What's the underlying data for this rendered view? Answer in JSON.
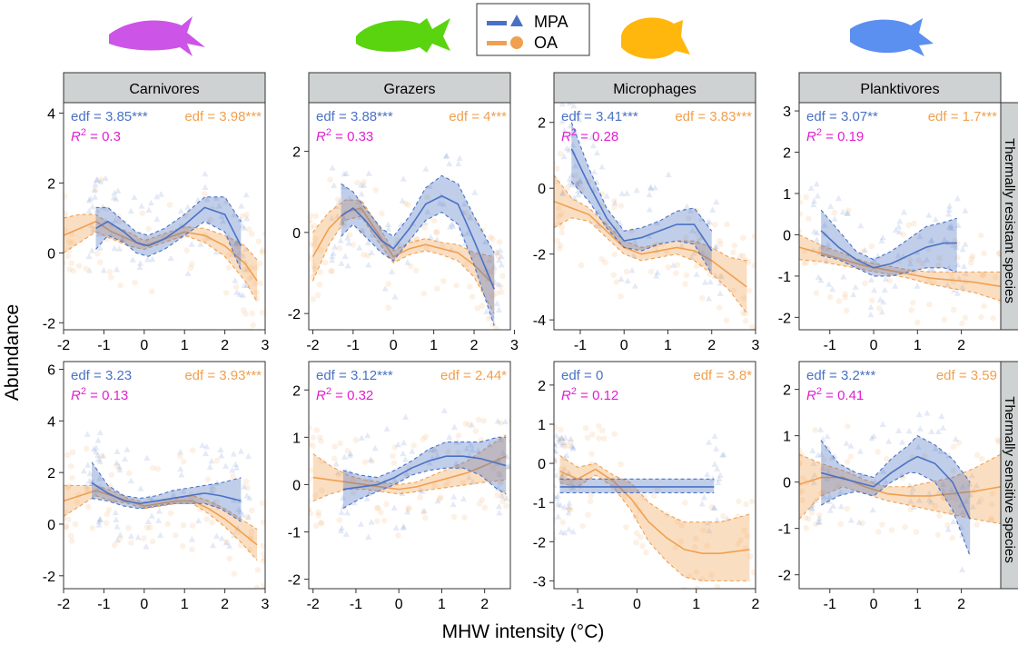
{
  "colors": {
    "mpa": "#4a72c4",
    "oa": "#f0a050",
    "r2": "#e020d0",
    "strip_fill": "#cfd2d2",
    "fish": [
      "#cc55e8",
      "#5ad40e",
      "#ffb70e",
      "#5b8ff0"
    ]
  },
  "legend": {
    "mpa_label": "MPA",
    "oa_label": "OA"
  },
  "axis": {
    "ylabel": "Abundance",
    "xlabel": "MHW intensity (°C)"
  },
  "columns": [
    "Carnivores",
    "Grazers",
    "Microphages",
    "Planktivores"
  ],
  "rows": [
    "Thermally resistant species",
    "Thermally sensitive species"
  ],
  "chart_data": [
    {
      "type": "line",
      "panel": "Carnivores - Thermally resistant species",
      "xlim": [
        -2,
        3
      ],
      "ylim": [
        -2.2,
        4.3
      ],
      "xticks": [
        -2,
        -1,
        0,
        1,
        2,
        3
      ],
      "yticks": [
        -2,
        0,
        2,
        4
      ],
      "series": [
        {
          "name": "MPA",
          "x": [
            -1.2,
            -0.9,
            -0.5,
            -0.2,
            0.1,
            0.5,
            1.0,
            1.5,
            2.0,
            2.4
          ],
          "y": [
            0.7,
            0.9,
            0.6,
            0.3,
            0.2,
            0.4,
            0.8,
            1.3,
            1.1,
            0.2
          ],
          "lower": [
            0.1,
            0.5,
            0.3,
            0.0,
            -0.1,
            0.1,
            0.5,
            0.9,
            0.6,
            -0.5
          ],
          "upper": [
            1.3,
            1.3,
            0.9,
            0.6,
            0.5,
            0.7,
            1.1,
            1.6,
            1.6,
            0.9
          ]
        },
        {
          "name": "OA",
          "x": [
            -2.0,
            -1.6,
            -1.2,
            -0.8,
            -0.4,
            0.0,
            0.5,
            1.0,
            1.5,
            2.0,
            2.5,
            2.8
          ],
          "y": [
            0.5,
            0.7,
            0.9,
            0.6,
            0.4,
            0.2,
            0.4,
            0.6,
            0.5,
            0.2,
            -0.3,
            -0.8
          ],
          "lower": [
            0.0,
            0.3,
            0.6,
            0.4,
            0.2,
            0.1,
            0.3,
            0.5,
            0.3,
            -0.1,
            -0.8,
            -1.4
          ],
          "upper": [
            1.0,
            1.1,
            1.1,
            0.8,
            0.6,
            0.35,
            0.55,
            0.75,
            0.7,
            0.5,
            0.2,
            -0.2
          ]
        }
      ],
      "annotations": {
        "mpa": "edf = 3.85***",
        "oa": "edf = 3.98***",
        "r2": "0.3"
      }
    },
    {
      "type": "line",
      "panel": "Grazers - Thermally resistant species",
      "xlim": [
        -2.1,
        2.9
      ],
      "ylim": [
        -2.4,
        3.2
      ],
      "xticks": [
        -2,
        -1,
        0,
        1,
        2,
        3
      ],
      "yticks": [
        -2,
        0,
        2
      ],
      "series": [
        {
          "name": "MPA",
          "x": [
            -1.3,
            -1.0,
            -0.7,
            -0.3,
            0.0,
            0.4,
            0.8,
            1.2,
            1.6,
            2.0,
            2.5
          ],
          "y": [
            0.4,
            0.6,
            0.3,
            -0.2,
            -0.4,
            0.1,
            0.7,
            0.9,
            0.7,
            -0.2,
            -1.4
          ],
          "lower": [
            -0.1,
            0.2,
            -0.1,
            -0.5,
            -0.7,
            -0.2,
            0.3,
            0.5,
            0.2,
            -0.8,
            -2.3
          ],
          "upper": [
            1.2,
            1.0,
            0.6,
            0.1,
            -0.1,
            0.4,
            1.1,
            1.4,
            1.2,
            0.4,
            -0.5
          ]
        },
        {
          "name": "OA",
          "x": [
            -2.0,
            -1.6,
            -1.2,
            -0.8,
            -0.4,
            0.0,
            0.4,
            0.8,
            1.2,
            1.6,
            2.0,
            2.5
          ],
          "y": [
            -0.6,
            0.1,
            0.5,
            0.6,
            0.0,
            -0.6,
            -0.4,
            -0.3,
            -0.4,
            -0.5,
            -0.8,
            -1.3
          ],
          "lower": [
            -1.2,
            -0.3,
            0.3,
            0.4,
            -0.2,
            -0.75,
            -0.55,
            -0.45,
            -0.55,
            -0.7,
            -1.1,
            -2.0
          ],
          "upper": [
            0.0,
            0.5,
            0.8,
            0.8,
            0.2,
            -0.45,
            -0.25,
            -0.15,
            -0.25,
            -0.3,
            -0.5,
            -0.6
          ]
        }
      ],
      "annotations": {
        "mpa": "edf = 3.88***",
        "oa": "edf = 4***",
        "r2": "0.33"
      }
    },
    {
      "type": "line",
      "panel": "Microphages - Thermally resistant species",
      "xlim": [
        -1.6,
        3.0
      ],
      "ylim": [
        -4.3,
        2.6
      ],
      "xticks": [
        -1,
        0,
        1,
        2,
        3
      ],
      "yticks": [
        -4,
        -2,
        0,
        2
      ],
      "series": [
        {
          "name": "MPA",
          "x": [
            -1.2,
            -0.8,
            -0.4,
            0.0,
            0.4,
            0.8,
            1.2,
            1.6,
            2.0
          ],
          "y": [
            1.2,
            0.1,
            -0.9,
            -1.6,
            -1.5,
            -1.3,
            -1.1,
            -1.1,
            -1.9
          ],
          "lower": [
            0.2,
            -0.4,
            -1.2,
            -1.8,
            -1.9,
            -1.7,
            -1.6,
            -1.7,
            -2.6
          ],
          "upper": [
            2.0,
            0.6,
            -0.6,
            -1.3,
            -1.2,
            -1.0,
            -0.7,
            -0.6,
            -1.3
          ]
        },
        {
          "name": "OA",
          "x": [
            -1.6,
            -1.2,
            -0.8,
            -0.4,
            0.0,
            0.4,
            0.8,
            1.2,
            1.6,
            2.0,
            2.4,
            2.8
          ],
          "y": [
            -0.4,
            -0.6,
            -0.8,
            -1.3,
            -1.8,
            -2.0,
            -1.9,
            -1.8,
            -1.9,
            -2.2,
            -2.6,
            -3.0
          ],
          "lower": [
            -1.2,
            -0.9,
            -1.0,
            -1.5,
            -2.0,
            -2.2,
            -2.1,
            -2.0,
            -2.2,
            -2.6,
            -3.1,
            -3.8
          ],
          "upper": [
            0.4,
            -0.3,
            -0.6,
            -1.1,
            -1.6,
            -1.8,
            -1.7,
            -1.6,
            -1.6,
            -1.8,
            -2.1,
            -2.2
          ]
        }
      ],
      "annotations": {
        "mpa": "edf = 3.41***",
        "oa": "edf = 3.83***",
        "r2": "0.28"
      }
    },
    {
      "type": "line",
      "panel": "Planktivores - Thermally resistant species",
      "xlim": [
        -1.7,
        2.9
      ],
      "ylim": [
        -2.3,
        3.2
      ],
      "xticks": [
        -1,
        0,
        1,
        2
      ],
      "yticks": [
        -2,
        -1,
        0,
        1,
        2,
        3
      ],
      "series": [
        {
          "name": "MPA",
          "x": [
            -1.2,
            -0.8,
            -0.4,
            0.0,
            0.4,
            0.8,
            1.2,
            1.6,
            1.9
          ],
          "y": [
            0.1,
            -0.3,
            -0.6,
            -0.8,
            -0.7,
            -0.5,
            -0.3,
            -0.2,
            -0.2
          ],
          "lower": [
            -0.5,
            -0.6,
            -0.8,
            -1.0,
            -1.0,
            -0.9,
            -0.8,
            -0.8,
            -0.9
          ],
          "upper": [
            0.6,
            0.1,
            -0.4,
            -0.6,
            -0.4,
            -0.1,
            0.2,
            0.3,
            0.4
          ]
        },
        {
          "name": "OA",
          "x": [
            -1.7,
            -1.2,
            -0.7,
            -0.2,
            0.3,
            0.8,
            1.3,
            1.8,
            2.3,
            2.9
          ],
          "y": [
            -0.3,
            -0.45,
            -0.6,
            -0.75,
            -0.85,
            -0.95,
            -1.05,
            -1.1,
            -1.15,
            -1.25
          ],
          "lower": [
            -0.6,
            -0.65,
            -0.75,
            -0.85,
            -0.95,
            -1.05,
            -1.2,
            -1.3,
            -1.4,
            -1.6
          ],
          "upper": [
            0.0,
            -0.25,
            -0.45,
            -0.65,
            -0.75,
            -0.85,
            -0.9,
            -0.9,
            -0.9,
            -0.9
          ]
        }
      ],
      "annotations": {
        "mpa": "edf = 3.07**",
        "oa": "edf = 1.7***",
        "r2": "0.19"
      }
    },
    {
      "type": "line",
      "panel": "Carnivores - Thermally sensitive species",
      "xlim": [
        -2,
        3
      ],
      "ylim": [
        -2.5,
        6.3
      ],
      "xticks": [
        -2,
        -1,
        0,
        1,
        2,
        3
      ],
      "yticks": [
        -2,
        0,
        2,
        4,
        6
      ],
      "series": [
        {
          "name": "MPA",
          "x": [
            -1.3,
            -0.9,
            -0.5,
            -0.1,
            0.3,
            0.7,
            1.1,
            1.5,
            1.9,
            2.4
          ],
          "y": [
            1.6,
            1.2,
            0.9,
            0.8,
            0.9,
            1.0,
            1.1,
            1.2,
            1.1,
            0.9
          ],
          "lower": [
            1.0,
            0.9,
            0.7,
            0.6,
            0.7,
            0.8,
            0.8,
            0.8,
            0.6,
            0.1
          ],
          "upper": [
            2.4,
            1.5,
            1.1,
            1.0,
            1.1,
            1.3,
            1.4,
            1.5,
            1.6,
            1.8
          ]
        },
        {
          "name": "OA",
          "x": [
            -2.0,
            -1.6,
            -1.2,
            -0.8,
            -0.4,
            0.0,
            0.4,
            0.8,
            1.2,
            1.6,
            2.0,
            2.4,
            2.8
          ],
          "y": [
            0.9,
            1.1,
            1.3,
            1.1,
            0.9,
            0.7,
            0.8,
            0.9,
            0.9,
            0.6,
            0.2,
            -0.3,
            -0.8
          ],
          "lower": [
            0.3,
            0.7,
            1.1,
            0.9,
            0.8,
            0.6,
            0.7,
            0.8,
            0.8,
            0.4,
            -0.1,
            -0.7,
            -1.4
          ],
          "upper": [
            1.5,
            1.5,
            1.5,
            1.3,
            1.0,
            0.85,
            0.9,
            1.0,
            1.1,
            0.9,
            0.6,
            0.2,
            -0.2
          ]
        }
      ],
      "annotations": {
        "mpa": "edf = 3.23",
        "oa": "edf = 3.93***",
        "r2": "0.13"
      }
    },
    {
      "type": "line",
      "panel": "Grazers - Thermally sensitive species",
      "xlim": [
        -2.1,
        2.6
      ],
      "ylim": [
        -2.2,
        2.6
      ],
      "xticks": [
        -2,
        -1,
        0,
        1,
        2
      ],
      "yticks": [
        -2,
        -1,
        0,
        1,
        2
      ],
      "series": [
        {
          "name": "MPA",
          "x": [
            -1.3,
            -0.9,
            -0.5,
            -0.1,
            0.3,
            0.7,
            1.1,
            1.5,
            1.9,
            2.3,
            2.5
          ],
          "y": [
            -0.1,
            -0.05,
            0.0,
            0.15,
            0.35,
            0.5,
            0.6,
            0.6,
            0.55,
            0.45,
            0.4
          ],
          "lower": [
            -0.5,
            -0.3,
            -0.15,
            0.0,
            0.2,
            0.3,
            0.35,
            0.35,
            0.2,
            -0.1,
            -0.2
          ],
          "upper": [
            0.3,
            0.2,
            0.15,
            0.3,
            0.5,
            0.75,
            0.9,
            0.9,
            0.9,
            1.0,
            1.0
          ]
        },
        {
          "name": "OA",
          "x": [
            -2.0,
            -1.6,
            -1.2,
            -0.8,
            -0.4,
            0.0,
            0.4,
            0.8,
            1.2,
            1.6,
            2.0,
            2.5
          ],
          "y": [
            0.15,
            0.1,
            0.05,
            0.0,
            -0.05,
            -0.1,
            -0.05,
            0.05,
            0.15,
            0.25,
            0.4,
            0.6
          ],
          "lower": [
            -0.35,
            -0.2,
            -0.1,
            -0.1,
            -0.15,
            -0.2,
            -0.15,
            -0.1,
            -0.05,
            0.0,
            0.05,
            0.1
          ],
          "upper": [
            0.65,
            0.4,
            0.2,
            0.1,
            0.05,
            0.0,
            0.05,
            0.2,
            0.35,
            0.5,
            0.75,
            1.05
          ]
        }
      ],
      "annotations": {
        "mpa": "edf = 3.12***",
        "oa": "edf = 2.44*",
        "r2": "0.32"
      }
    },
    {
      "type": "line",
      "panel": "Microphages - Thermally sensitive species",
      "xlim": [
        -1.4,
        2.0
      ],
      "ylim": [
        -3.2,
        2.6
      ],
      "xticks": [
        -1,
        0,
        1,
        2
      ],
      "yticks": [
        -3,
        -2,
        -1,
        0,
        1,
        2
      ],
      "series": [
        {
          "name": "MPA",
          "x": [
            -1.3,
            1.3
          ],
          "y": [
            -0.6,
            -0.6
          ],
          "lower": [
            -0.75,
            -0.75
          ],
          "upper": [
            -0.4,
            -0.4
          ]
        },
        {
          "name": "OA",
          "x": [
            -1.3,
            -1.0,
            -0.7,
            -0.4,
            -0.1,
            0.2,
            0.5,
            0.8,
            1.1,
            1.4,
            1.9
          ],
          "y": [
            -0.2,
            -0.4,
            -0.15,
            -0.45,
            -0.9,
            -1.5,
            -1.9,
            -2.2,
            -2.3,
            -2.3,
            -2.2
          ],
          "lower": [
            -0.5,
            -0.6,
            -0.3,
            -0.6,
            -1.2,
            -2.0,
            -2.5,
            -2.9,
            -3.0,
            -3.0,
            -3.0
          ],
          "upper": [
            0.2,
            -0.1,
            0.0,
            -0.3,
            -0.5,
            -1.0,
            -1.3,
            -1.5,
            -1.5,
            -1.5,
            -1.3
          ]
        }
      ],
      "annotations": {
        "mpa": "edf = 0",
        "oa": "edf = 3.8*",
        "r2": "0.12"
      }
    },
    {
      "type": "line",
      "panel": "Planktivores - Thermally sensitive species",
      "xlim": [
        -1.7,
        2.9
      ],
      "ylim": [
        -2.3,
        2.6
      ],
      "xticks": [
        -1,
        0,
        1,
        2
      ],
      "yticks": [
        -2,
        -1,
        0,
        1,
        2
      ],
      "series": [
        {
          "name": "MPA",
          "x": [
            -1.2,
            -0.8,
            -0.4,
            0.0,
            0.4,
            0.8,
            1.0,
            1.4,
            1.8,
            2.2
          ],
          "y": [
            0.2,
            0.1,
            0.0,
            -0.1,
            0.2,
            0.45,
            0.55,
            0.4,
            0.0,
            -0.8
          ],
          "lower": [
            -0.5,
            -0.3,
            -0.2,
            -0.3,
            0.0,
            0.2,
            0.2,
            0.0,
            -0.6,
            -1.6
          ],
          "upper": [
            0.9,
            0.4,
            0.2,
            0.1,
            0.5,
            0.8,
            1.0,
            0.8,
            0.5,
            0.0
          ]
        },
        {
          "name": "OA",
          "x": [
            -1.7,
            -1.2,
            -0.7,
            -0.2,
            0.3,
            0.8,
            1.3,
            1.8,
            2.3,
            2.9
          ],
          "y": [
            -0.05,
            0.1,
            0.1,
            -0.1,
            -0.25,
            -0.3,
            -0.3,
            -0.25,
            -0.2,
            -0.1
          ],
          "lower": [
            -0.8,
            -0.3,
            -0.1,
            -0.25,
            -0.4,
            -0.5,
            -0.6,
            -0.7,
            -0.8,
            -0.9
          ],
          "upper": [
            0.6,
            0.4,
            0.25,
            0.05,
            -0.1,
            -0.1,
            0.0,
            0.1,
            0.3,
            0.6
          ]
        }
      ],
      "annotations": {
        "mpa": "edf = 3.2***",
        "oa": "edf = 3.59",
        "r2": "0.41"
      }
    }
  ]
}
